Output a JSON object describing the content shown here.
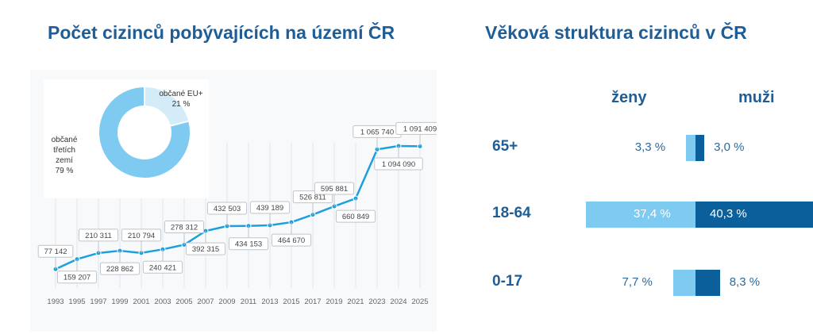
{
  "left_title": "Počet cizinců pobývajících na území ČR",
  "right_title": "Věková struktura cizinců v ČR",
  "donut": {
    "segments": [
      {
        "label_line1": "občané EU+",
        "label_line2": "",
        "percent_label": "21 %",
        "value": 21,
        "color": "#d4ecf8"
      },
      {
        "label_line1": "občané",
        "label_line2": "třetích zemí",
        "percent_label": "79 %",
        "value": 79,
        "color": "#7fcaf1"
      }
    ]
  },
  "chart_data": [
    {
      "type": "line",
      "x": [
        "1993",
        "1995",
        "1997",
        "1999",
        "2001",
        "2003",
        "2005",
        "2007",
        "2009",
        "2011",
        "2013",
        "2015",
        "2017",
        "2019",
        "2021",
        "2023",
        "2024",
        "2025"
      ],
      "values": [
        77142,
        159207,
        210311,
        228862,
        210794,
        240421,
        278312,
        392315,
        432503,
        434153,
        439189,
        464670,
        526811,
        595881,
        660849,
        1065740,
        1094090,
        1091409
      ],
      "labels": [
        "77 142",
        "159 207",
        "210 311",
        "228 862",
        "210 794",
        "240 421",
        "278 312",
        "392 315",
        "432 503",
        "434 153",
        "439 189",
        "464 670",
        "526 811",
        "595 881",
        "660 849",
        "1 065 740",
        "1 094 090",
        "1 091 409"
      ],
      "color": "#1ba0dc"
    },
    {
      "type": "bar",
      "orientation": "horizontal-diverging",
      "categories": [
        "65+",
        "18-64",
        "0-17"
      ],
      "series": [
        {
          "name": "ženy",
          "values": [
            3.3,
            37.4,
            7.7
          ],
          "labels": [
            "3,3 %",
            "37,4 %",
            "7,7 %"
          ],
          "color": "#7fcaf1"
        },
        {
          "name": "muži",
          "values": [
            3.0,
            40.3,
            8.3
          ],
          "labels": [
            "3,0 %",
            "40,3 %",
            "8,3 %"
          ],
          "color": "#0b5f9a"
        }
      ]
    }
  ]
}
